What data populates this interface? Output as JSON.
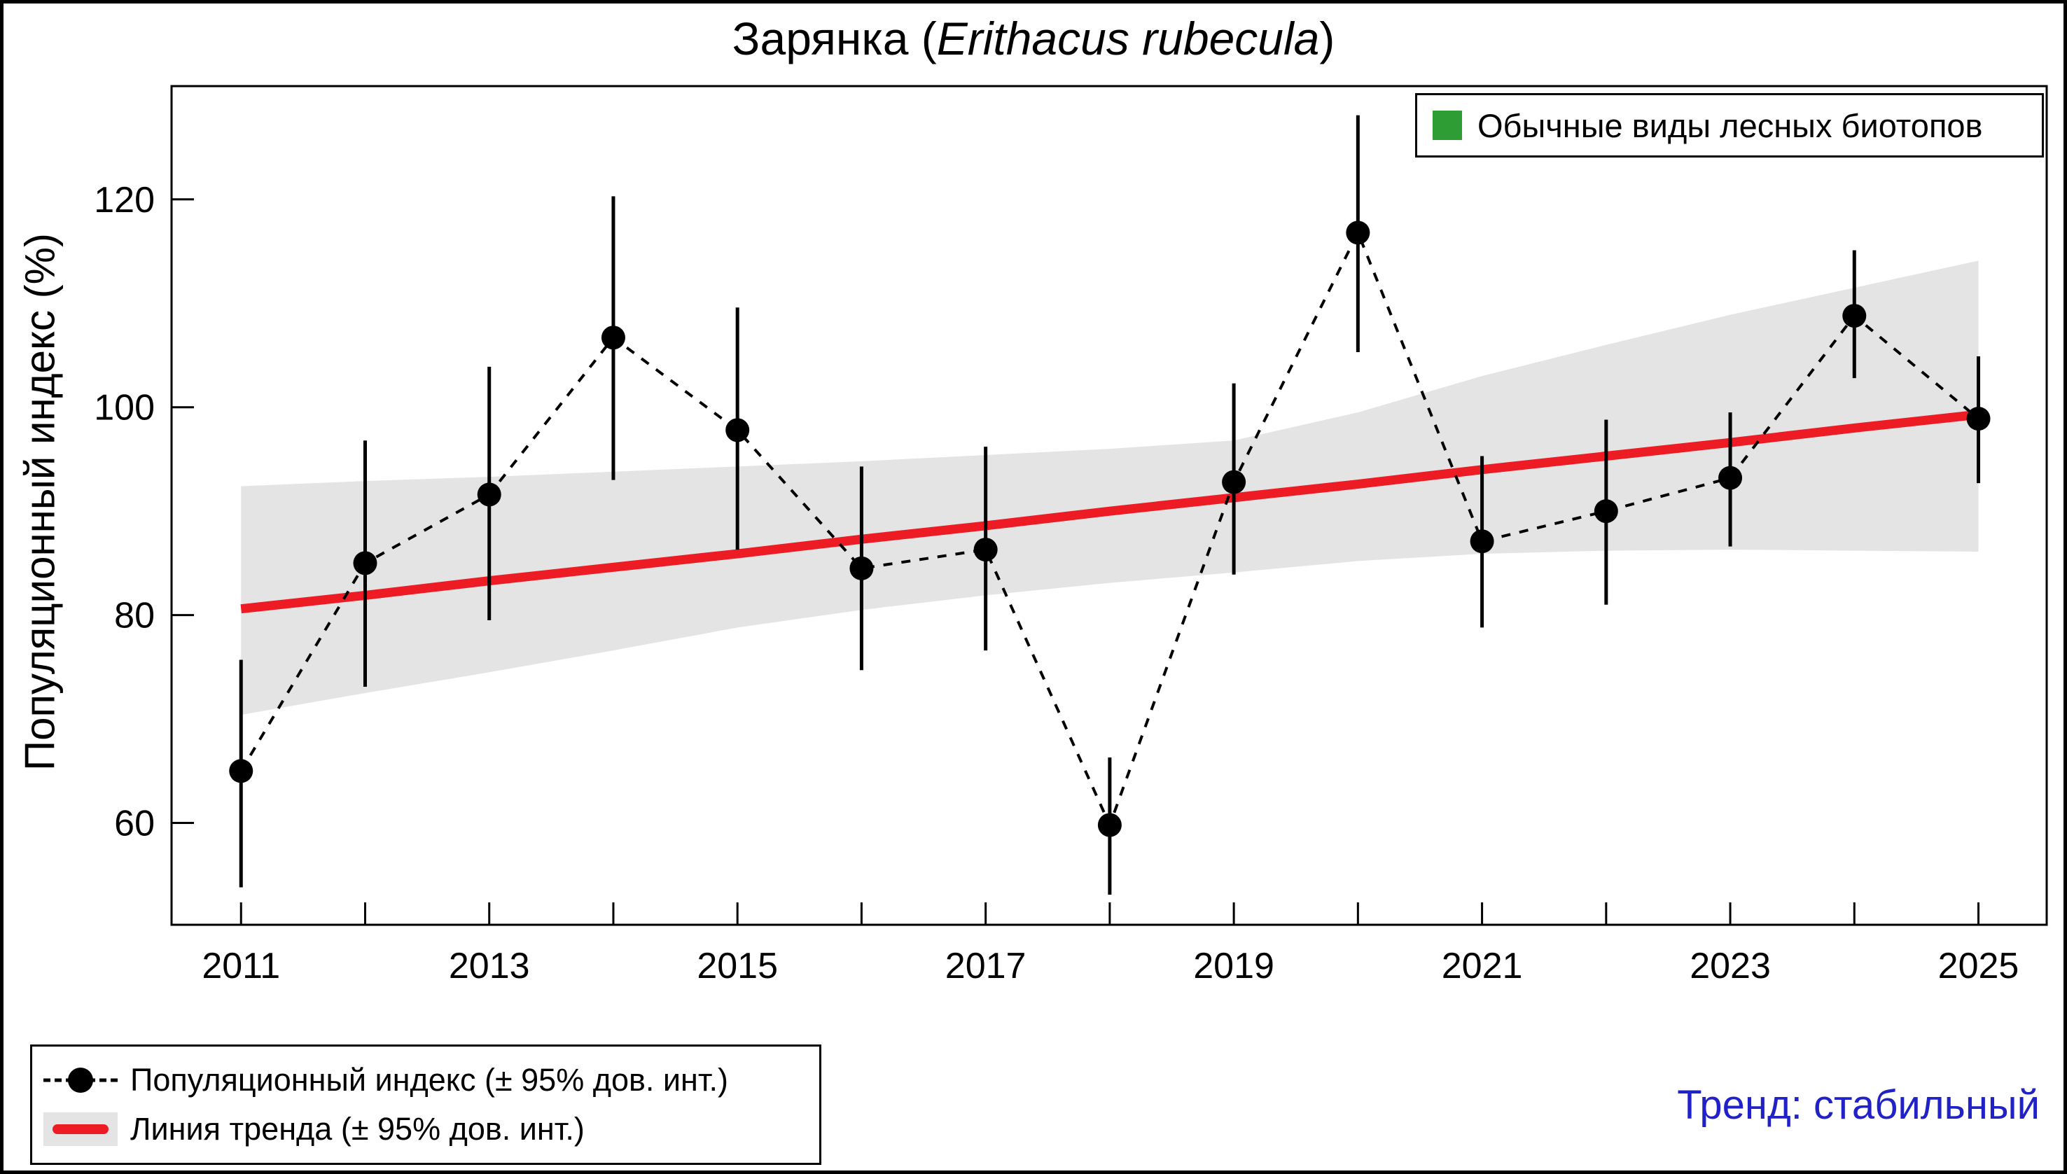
{
  "title": {
    "prefix": "Зарянка (",
    "species": "Erithacus rubecula",
    "suffix": ")"
  },
  "legend_top": {
    "label": "Обычные виды лесных биотопов",
    "swatch_color": "#2e9e34"
  },
  "legend_bottom": {
    "items": [
      {
        "label": "Популяционный индекс (± 95% дов. инт.)",
        "marker": "point-with-dashed-line"
      },
      {
        "label": "Линия тренда (± 95% дов. инт.)",
        "marker": "red-line-on-gray-band"
      }
    ]
  },
  "trend_note": {
    "text": "Тренд: стабильный",
    "color": "#2121c8"
  },
  "colors": {
    "trend_red": "#ed1c24",
    "band_gray": "#e4e4e4",
    "point_black": "#000000",
    "habitat_green": "#2e9e34",
    "trend_note_blue": "#2121c8",
    "axis_black": "#000000"
  },
  "chart_data": {
    "type": "scatter",
    "title": "Зарянка (Erithacus rubecula)",
    "xlabel": "",
    "ylabel": "Популяционный индекс (%)",
    "x": [
      2011,
      2012,
      2013,
      2014,
      2015,
      2016,
      2017,
      2018,
      2019,
      2020,
      2021,
      2022,
      2023,
      2024,
      2025
    ],
    "series": [
      {
        "name": "Популяционный индекс (± 95% дов. инт.)",
        "type": "points-with-error-bars-and-dashed-line",
        "values": [
          65.0,
          85.0,
          91.6,
          106.7,
          97.8,
          84.5,
          86.3,
          59.8,
          92.8,
          116.8,
          87.1,
          90.0,
          93.2,
          108.8,
          98.9
        ],
        "ci_low": [
          53.8,
          73.1,
          79.5,
          93.0,
          86.3,
          74.7,
          76.6,
          53.1,
          83.9,
          105.3,
          78.8,
          81.0,
          86.6,
          102.8,
          92.7
        ],
        "ci_high": [
          75.7,
          96.8,
          103.9,
          120.3,
          109.6,
          94.3,
          96.2,
          66.3,
          102.3,
          128.1,
          95.3,
          98.8,
          99.5,
          115.1,
          104.9
        ]
      },
      {
        "name": "Линия тренда (± 95% дов. инт.)",
        "type": "line-with-confidence-band",
        "values": [
          80.6,
          81.9,
          83.3,
          84.6,
          85.9,
          87.3,
          88.6,
          90.0,
          91.3,
          92.6,
          94.0,
          95.3,
          96.6,
          98.0,
          99.3
        ],
        "band_low": [
          70.4,
          72.5,
          74.5,
          76.6,
          78.8,
          80.5,
          81.9,
          83.1,
          84.1,
          85.2,
          85.9,
          86.2,
          86.3,
          86.2,
          86.1
        ],
        "band_high": [
          92.4,
          92.9,
          93.3,
          93.8,
          94.3,
          94.8,
          95.4,
          96.0,
          96.8,
          99.5,
          103.0,
          106.0,
          108.9,
          111.5,
          114.1
        ]
      }
    ],
    "xlim": [
      2010.44,
      2025.55
    ],
    "ylim": [
      50.2,
      130.9
    ],
    "y_ticks": [
      60,
      80,
      100,
      120
    ],
    "x_ticks": [
      2011,
      2012,
      2013,
      2014,
      2015,
      2016,
      2017,
      2018,
      2019,
      2020,
      2021,
      2022,
      2023,
      2024,
      2025
    ],
    "x_tick_labels": [
      2011,
      2013,
      2015,
      2017,
      2019,
      2021,
      2023,
      2025
    ],
    "grid": false,
    "legend_position": "top-right"
  }
}
